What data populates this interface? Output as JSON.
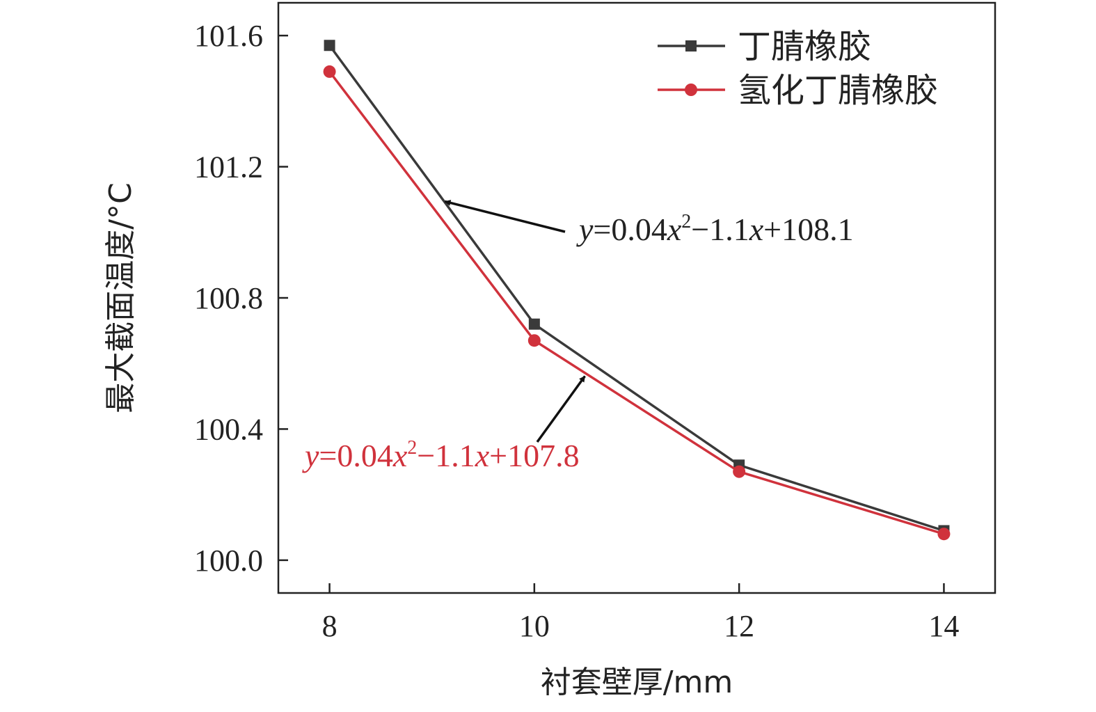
{
  "chart_data": {
    "type": "line",
    "xlabel": "衬套壁厚/mm",
    "ylabel": "最大截面温度/°C",
    "x": [
      8,
      10,
      12,
      14
    ],
    "xticks": [
      "8",
      "10",
      "12",
      "14"
    ],
    "xlim": [
      7.5,
      14.5
    ],
    "yticks": [
      "100.0",
      "100.4",
      "100.8",
      "101.2",
      "101.6"
    ],
    "ylim": [
      99.9,
      101.7
    ],
    "legend_position": "top-right",
    "grid": false,
    "series": [
      {
        "name": "丁腈橡胶",
        "values": [
          101.57,
          100.72,
          100.29,
          100.09
        ],
        "color": "#3a3a3a",
        "marker": "square"
      },
      {
        "name": "氢化丁腈橡胶",
        "values": [
          101.49,
          100.67,
          100.27,
          100.08
        ],
        "color": "#d0323c",
        "marker": "circle"
      }
    ],
    "annotations": [
      {
        "parts": [
          {
            "t": "y",
            "italic": true
          },
          {
            "t": "=0.04"
          },
          {
            "t": "x",
            "italic": true
          },
          {
            "t": "2",
            "sup": true
          },
          {
            "t": "−1.1"
          },
          {
            "t": "x",
            "italic": true
          },
          {
            "t": "+108.1"
          }
        ],
        "color": "#222222",
        "series": 0
      },
      {
        "parts": [
          {
            "t": "y",
            "italic": true
          },
          {
            "t": "=0.04"
          },
          {
            "t": "x",
            "italic": true
          },
          {
            "t": "2",
            "sup": true
          },
          {
            "t": "−1.1"
          },
          {
            "t": "x",
            "italic": true
          },
          {
            "t": "+107.8"
          }
        ],
        "color": "#d0323c",
        "series": 1
      }
    ]
  }
}
